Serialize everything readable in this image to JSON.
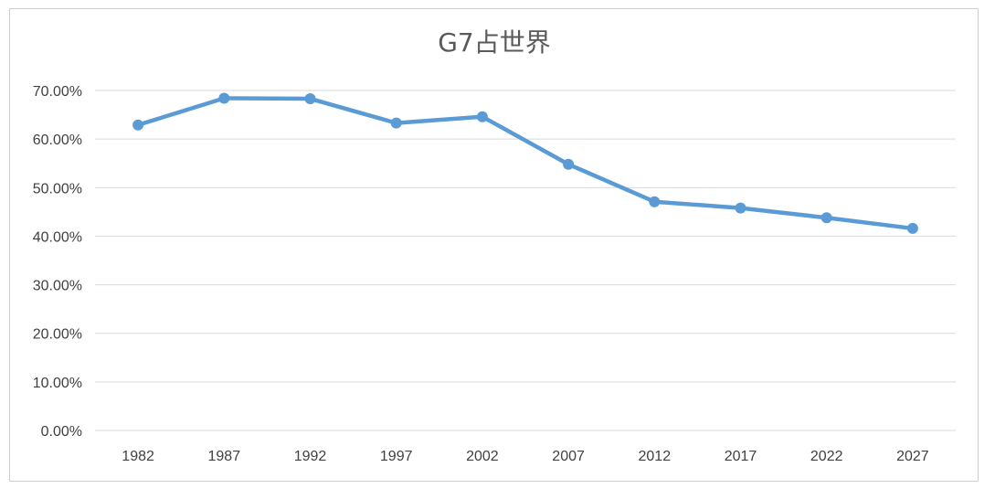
{
  "chart_data": {
    "type": "line",
    "title": "G7占世界",
    "xlabel": "",
    "ylabel": "",
    "categories": [
      "1982",
      "1987",
      "1992",
      "1997",
      "2002",
      "2007",
      "2012",
      "2017",
      "2022",
      "2027"
    ],
    "y_ticks": [
      "0.00%",
      "10.00%",
      "20.00%",
      "30.00%",
      "40.00%",
      "50.00%",
      "60.00%",
      "70.00%"
    ],
    "ylim": [
      0,
      70
    ],
    "grid": true,
    "legend": "none",
    "series": [
      {
        "values": [
          62.9,
          68.4,
          68.3,
          63.3,
          64.6,
          54.8,
          47.1,
          45.8,
          43.8,
          41.6
        ],
        "color": "#5b9bd5"
      }
    ]
  }
}
